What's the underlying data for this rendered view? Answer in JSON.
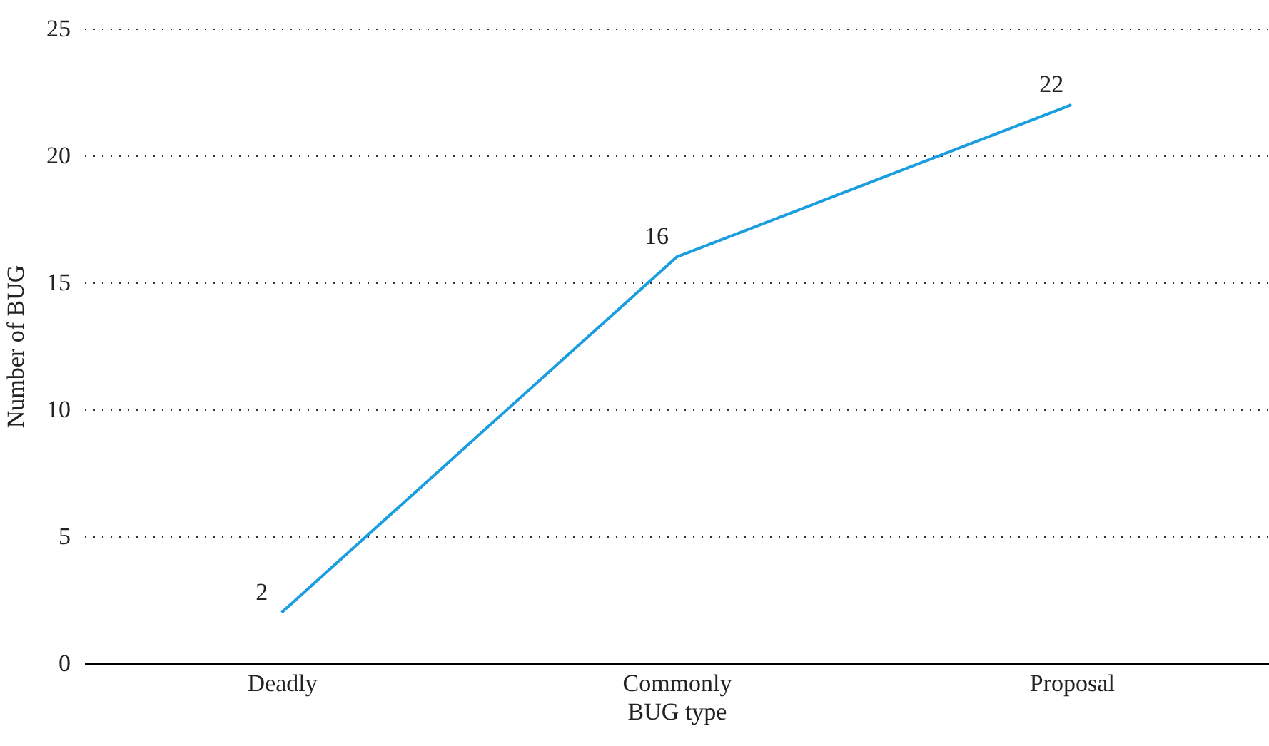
{
  "chart_data": {
    "type": "line",
    "xlabel": "BUG type",
    "ylabel": "Number of BUG",
    "categories": [
      "Deadly",
      "Commonly",
      "Proposal"
    ],
    "series": [
      {
        "color": "#1a9ee0",
        "values": [
          2,
          16,
          22
        ]
      }
    ],
    "ylim": [
      0,
      25
    ],
    "yticks": [
      0,
      5,
      10,
      15,
      20,
      25
    ],
    "grid": "y",
    "data_labels": true,
    "marker": "none",
    "line_style": "solid",
    "legend": false
  }
}
